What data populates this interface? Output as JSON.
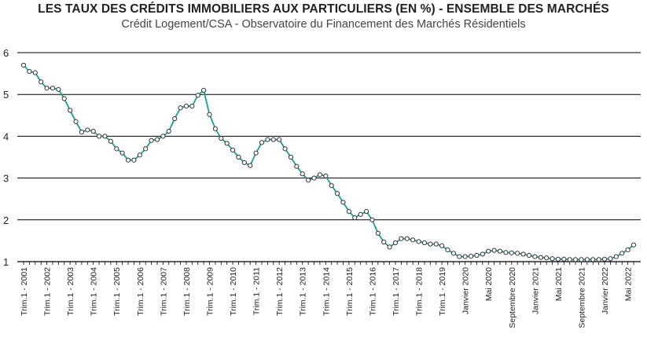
{
  "chart_data": {
    "type": "line",
    "title": "LES TAUX DES CRÉDITS IMMOBILIERS AUX PARTICULIERS (EN %) - ENSEMBLE DES MARCHÉS",
    "subtitle": "Crédit Logement/CSA - Observatoire du Financement des Marchés Résidentiels",
    "xlabel": "",
    "ylabel": "",
    "ylim": [
      1,
      6
    ],
    "yticks": [
      1,
      2,
      3,
      4,
      5,
      6
    ],
    "grid": "horizontal",
    "line_color": "#1a9e96",
    "marker_fill": "#ffffff",
    "marker_stroke": "#333333",
    "x_labels": [
      {
        "i": 0,
        "label": "Trim.1 - 2001"
      },
      {
        "i": 4,
        "label": "Trim.1 - 2002"
      },
      {
        "i": 8,
        "label": "Trim.1 - 2003"
      },
      {
        "i": 12,
        "label": "Trim.1 - 2004"
      },
      {
        "i": 16,
        "label": "Trim.1 - 2005"
      },
      {
        "i": 20,
        "label": "Trim.1 - 2006"
      },
      {
        "i": 24,
        "label": "Trim.1 - 2007"
      },
      {
        "i": 28,
        "label": "Trim.1 - 2008"
      },
      {
        "i": 32,
        "label": "Trim.1 - 2009"
      },
      {
        "i": 36,
        "label": "Trim.1 - 2010"
      },
      {
        "i": 40,
        "label": "Trim.1 - 2011"
      },
      {
        "i": 44,
        "label": "Trim.1 - 2012"
      },
      {
        "i": 48,
        "label": "Trim.1 - 2013"
      },
      {
        "i": 52,
        "label": "Trim.1 - 2014"
      },
      {
        "i": 56,
        "label": "Trim.1 - 2015"
      },
      {
        "i": 60,
        "label": "Trim.1 - 2016"
      },
      {
        "i": 64,
        "label": "Trim.1 - 2017"
      },
      {
        "i": 68,
        "label": "Trim.1 - 2018"
      },
      {
        "i": 72,
        "label": "Trim.1 - 2019"
      },
      {
        "i": 76,
        "label": "Janvier 2020"
      },
      {
        "i": 80,
        "label": "Mai 2020"
      },
      {
        "i": 84,
        "label": "Septembre 2020"
      },
      {
        "i": 88,
        "label": "Janvier 2021"
      },
      {
        "i": 92,
        "label": "Mai 2021"
      },
      {
        "i": 96,
        "label": "Septembre 2021"
      },
      {
        "i": 100,
        "label": "Janvier 2022"
      },
      {
        "i": 104,
        "label": "Mai 2022"
      }
    ],
    "values": [
      5.7,
      5.55,
      5.52,
      5.3,
      5.15,
      5.15,
      5.12,
      4.9,
      4.62,
      4.35,
      4.1,
      4.15,
      4.12,
      4.0,
      4.0,
      3.88,
      3.7,
      3.6,
      3.43,
      3.43,
      3.55,
      3.7,
      3.9,
      3.92,
      4.0,
      4.12,
      4.42,
      4.68,
      4.72,
      4.72,
      4.98,
      5.1,
      4.52,
      4.18,
      3.95,
      3.83,
      3.67,
      3.5,
      3.37,
      3.3,
      3.6,
      3.85,
      3.92,
      3.92,
      3.92,
      3.7,
      3.5,
      3.28,
      3.1,
      2.95,
      3.0,
      3.08,
      3.05,
      2.82,
      2.63,
      2.42,
      2.2,
      2.05,
      2.13,
      2.2,
      2.0,
      1.68,
      1.47,
      1.35,
      1.45,
      1.55,
      1.55,
      1.52,
      1.48,
      1.45,
      1.42,
      1.42,
      1.38,
      1.28,
      1.2,
      1.12,
      1.12,
      1.13,
      1.15,
      1.18,
      1.25,
      1.27,
      1.25,
      1.22,
      1.21,
      1.2,
      1.18,
      1.15,
      1.12,
      1.1,
      1.09,
      1.07,
      1.06,
      1.06,
      1.05,
      1.05,
      1.05,
      1.05,
      1.05,
      1.05,
      1.06,
      1.07,
      1.12,
      1.2,
      1.28,
      1.4
    ]
  }
}
